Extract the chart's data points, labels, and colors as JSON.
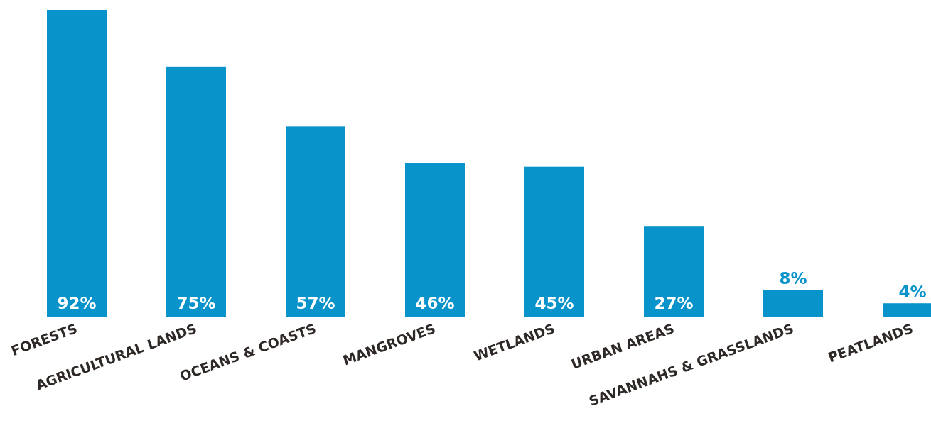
{
  "chart_data": {
    "type": "bar",
    "categories": [
      "FORESTS",
      "AGRICULTURAL LANDS",
      "OCEANS & COASTS",
      "MANGROVES",
      "WETLANDS",
      "URBAN AREAS",
      "SAVANNAHS & GRASSLANDS",
      "PEATLANDS"
    ],
    "values": [
      92,
      75,
      57,
      46,
      45,
      27,
      8,
      4
    ],
    "color": "#0893cb",
    "data_labels": true,
    "value_labels": [
      "92%",
      "75%",
      "57%",
      "46%",
      "45%",
      "27%",
      "8%",
      "4%"
    ]
  }
}
